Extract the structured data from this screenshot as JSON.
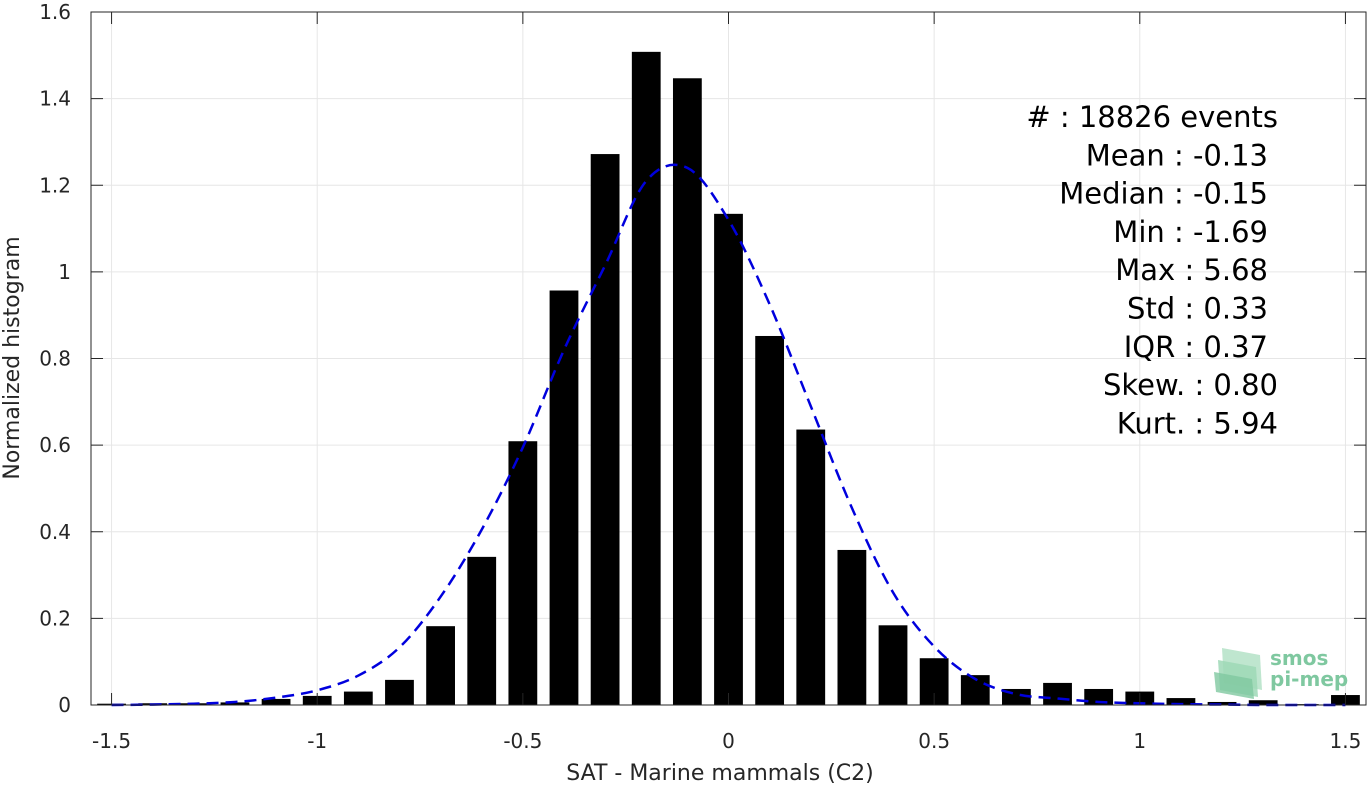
{
  "chart_data": {
    "type": "bar",
    "xlabel": "SAT - Marine mammals (C2)",
    "ylabel": "Normalized histogram",
    "xlim": [
      -1.55,
      1.55
    ],
    "ylim": [
      0,
      1.6
    ],
    "grid": true,
    "x_ticks": [
      "-1.5",
      "-1",
      "-0.5",
      "0",
      "0.5",
      "1",
      "1.5"
    ],
    "y_ticks": [
      "0",
      "0.2",
      "0.4",
      "0.6",
      "0.8",
      "1",
      "1.2",
      "1.4",
      "1.6"
    ],
    "bar_width": 0.07,
    "bars": {
      "x": [
        -1.5,
        -1.4,
        -1.3,
        -1.2,
        -1.1,
        -1.0,
        -0.9,
        -0.8,
        -0.7,
        -0.6,
        -0.5,
        -0.4,
        -0.3,
        -0.2,
        -0.1,
        0.0,
        0.1,
        0.2,
        0.3,
        0.4,
        0.5,
        0.6,
        0.7,
        0.8,
        0.9,
        1.0,
        1.1,
        1.2,
        1.3,
        1.4,
        1.5
      ],
      "values": [
        0.003,
        0.004,
        0.004,
        0.006,
        0.014,
        0.021,
        0.031,
        0.058,
        0.182,
        0.342,
        0.609,
        0.957,
        1.272,
        1.508,
        1.447,
        1.134,
        0.852,
        0.636,
        0.358,
        0.184,
        0.108,
        0.069,
        0.037,
        0.051,
        0.037,
        0.031,
        0.016,
        0.007,
        0.011,
        0.002,
        0.023
      ],
      "color": "#000000"
    },
    "fit_curve": {
      "style": "dashed",
      "color": "#0000dd",
      "x": [
        -1.5,
        -1.4,
        -1.3,
        -1.2,
        -1.1,
        -1.0,
        -0.9,
        -0.8,
        -0.7,
        -0.6,
        -0.5,
        -0.4,
        -0.3,
        -0.2,
        -0.1,
        0.0,
        0.1,
        0.2,
        0.3,
        0.4,
        0.5,
        0.6,
        0.7,
        0.8,
        0.9,
        1.0,
        1.1,
        1.2,
        1.3,
        1.4,
        1.5
      ],
      "y": [
        0.0,
        0.001,
        0.003,
        0.007,
        0.017,
        0.034,
        0.068,
        0.133,
        0.25,
        0.405,
        0.595,
        0.82,
        1.015,
        1.21,
        1.24,
        1.12,
        0.925,
        0.69,
        0.455,
        0.26,
        0.135,
        0.06,
        0.025,
        0.015,
        0.007,
        0.004,
        0.002,
        0.001,
        0.0,
        0.0,
        0.0
      ]
    },
    "stats": [
      "#  : 18826 events",
      "Mean : -0.13",
      "Median : -0.15",
      "Min : -1.69",
      "Max : 5.68",
      "Std : 0.33",
      "IQR : 0.37",
      "Skew. : 0.80",
      "Kurt. : 5.94"
    ]
  },
  "logo": {
    "line1": "smos",
    "line2": "pi-mep",
    "color": "#7fc8a0"
  }
}
